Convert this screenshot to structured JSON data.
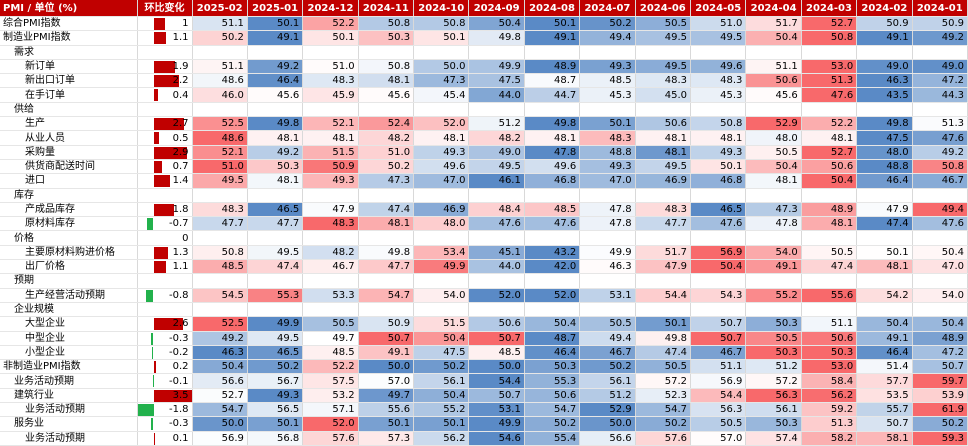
{
  "table": {
    "header": [
      "PMI / 单位 (%)",
      "环比变化",
      "2025-02",
      "2025-01",
      "2024-12",
      "2024-11",
      "2024-10",
      "2024-09",
      "2024-08",
      "2024-07",
      "2024-06",
      "2024-05",
      "2024-04",
      "2024-03",
      "2024-02",
      "2024-01"
    ],
    "rows": [
      {
        "label": "综合PMI指数",
        "change": 1,
        "values": [
          51.1,
          50.1,
          52.2,
          50.8,
          50.8,
          50.4,
          50.1,
          50.2,
          50.5,
          51.0,
          51.7,
          52.7,
          50.9,
          50.9
        ],
        "value_labels": [
          "51.1",
          "50.1",
          "52.2",
          "50.8",
          "50.8",
          "50.4",
          "50.1",
          "50.2",
          "50.5",
          "51.0",
          "51.7",
          "52.7",
          "50.9",
          "50.9"
        ]
      },
      {
        "label": "制造业PMI指数",
        "change": 1.1,
        "values": [
          50.2,
          49.1,
          50.1,
          50.3,
          50.1,
          49.8,
          49.1,
          49.4,
          49.5,
          49.5,
          50.4,
          50.8,
          49.1,
          49.2
        ],
        "value_labels": [
          "50.2",
          "49.1",
          "50.1",
          "50.3",
          "50.1",
          "49.8",
          "49.1",
          "49.4",
          "49.5",
          "49.5",
          "50.4",
          "50.8",
          "49.1",
          "49.2"
        ]
      },
      {
        "label": "需求"
      },
      {
        "label": "新订单",
        "change": 1.9,
        "values": [
          51.1,
          49.2,
          51.0,
          50.8,
          50.0,
          49.9,
          48.9,
          49.3,
          49.5,
          49.6,
          51.1,
          53.0,
          49.0,
          49.0
        ],
        "value_labels": [
          "51.1",
          "49.2",
          "51.0",
          "50.8",
          "50.0",
          "49.9",
          "48.9",
          "49.3",
          "49.5",
          "49.6",
          "51.1",
          "53.0",
          "49.0",
          "49.0"
        ]
      },
      {
        "label": "新出口订单",
        "change": 2.2,
        "values": [
          48.6,
          46.4,
          48.3,
          48.1,
          47.3,
          47.5,
          48.7,
          48.5,
          48.3,
          48.3,
          50.6,
          51.3,
          46.3,
          47.2
        ],
        "value_labels": [
          "48.6",
          "46.4",
          "48.3",
          "48.1",
          "47.3",
          "47.5",
          "48.7",
          "48.5",
          "48.3",
          "48.3",
          "50.6",
          "51.3",
          "46.3",
          "47.2"
        ]
      },
      {
        "label": "在手订单",
        "change": 0.4,
        "values": [
          46.0,
          45.6,
          45.9,
          45.6,
          45.4,
          44.0,
          44.7,
          45.3,
          45.0,
          45.3,
          45.6,
          47.6,
          43.5,
          44.3
        ],
        "value_labels": [
          "46.0",
          "45.6",
          "45.9",
          "45.6",
          "45.4",
          "44.0",
          "44.7",
          "45.3",
          "45.0",
          "45.3",
          "45.6",
          "47.6",
          "43.5",
          "44.3"
        ]
      },
      {
        "label": "供给"
      },
      {
        "label": "生产",
        "change": 2.7,
        "values": [
          52.5,
          49.8,
          52.1,
          52.4,
          52.0,
          51.2,
          49.8,
          50.1,
          50.6,
          50.8,
          52.9,
          52.2,
          49.8,
          51.3
        ],
        "value_labels": [
          "52.5",
          "49.8",
          "52.1",
          "52.4",
          "52.0",
          "51.2",
          "49.8",
          "50.1",
          "50.6",
          "50.8",
          "52.9",
          "52.2",
          "49.8",
          "51.3"
        ]
      },
      {
        "label": "从业人员",
        "change": 0.5,
        "values": [
          48.6,
          48.1,
          48.1,
          48.2,
          48.1,
          48.2,
          48.1,
          48.3,
          48.1,
          48.1,
          48.0,
          48.1,
          47.5,
          47.6
        ],
        "value_labels": [
          "48.6",
          "48.1",
          "48.1",
          "48.2",
          "48.1",
          "48.2",
          "48.1",
          "48.3",
          "48.1",
          "48.1",
          "48.0",
          "48.1",
          "47.5",
          "47.6"
        ]
      },
      {
        "label": "采购量",
        "change": 2.9,
        "values": [
          52.1,
          49.2,
          51.5,
          51.0,
          49.3,
          49.0,
          47.8,
          48.8,
          48.1,
          49.3,
          50.5,
          52.7,
          48.0,
          49.2
        ],
        "value_labels": [
          "52.1",
          "49.2",
          "51.5",
          "51.0",
          "49.3",
          "49.0",
          "47.8",
          "48.8",
          "48.1",
          "49.3",
          "50.5",
          "52.7",
          "48.0",
          "49.2"
        ]
      },
      {
        "label": "供货商配送时间",
        "change": 0.7,
        "values": [
          51.0,
          50.3,
          50.9,
          50.2,
          49.6,
          49.5,
          49.6,
          49.3,
          49.5,
          50.1,
          50.4,
          50.6,
          48.8,
          50.8
        ],
        "value_labels": [
          "51.0",
          "50.3",
          "50.9",
          "50.2",
          "49.6",
          "49.5",
          "49.6",
          "49.3",
          "49.5",
          "50.1",
          "50.4",
          "50.6",
          "48.8",
          "50.8"
        ]
      },
      {
        "label": "进口",
        "change": 1.4,
        "values": [
          49.5,
          48.1,
          49.3,
          47.3,
          47.0,
          46.1,
          46.8,
          47.0,
          46.9,
          46.8,
          48.1,
          50.4,
          46.4,
          46.7
        ],
        "value_labels": [
          "49.5",
          "48.1",
          "49.3",
          "47.3",
          "47.0",
          "46.1",
          "46.8",
          "47.0",
          "46.9",
          "46.8",
          "48.1",
          "50.4",
          "46.4",
          "46.7"
        ]
      },
      {
        "label": "库存"
      },
      {
        "label": "产成品库存",
        "change": 1.8,
        "values": [
          48.3,
          46.5,
          47.9,
          47.4,
          46.9,
          48.4,
          48.5,
          47.8,
          48.3,
          46.5,
          47.3,
          48.9,
          47.9,
          49.4
        ],
        "value_labels": [
          "48.3",
          "46.5",
          "47.9",
          "47.4",
          "46.9",
          "48.4",
          "48.5",
          "47.8",
          "48.3",
          "46.5",
          "47.3",
          "48.9",
          "47.9",
          "49.4"
        ]
      },
      {
        "label": "原材料库存",
        "change": -0.7,
        "values": [
          47.7,
          47.7,
          48.3,
          48.1,
          48.0,
          47.6,
          47.6,
          47.8,
          47.7,
          47.6,
          47.8,
          48.1,
          47.4,
          47.6
        ],
        "value_labels": [
          "47.7",
          "47.7",
          "48.3",
          "48.1",
          "48.0",
          "47.6",
          "47.6",
          "47.8",
          "47.7",
          "47.6",
          "47.8",
          "48.1",
          "47.4",
          "47.6"
        ]
      },
      {
        "label": "价格",
        "change": 0
      },
      {
        "label": "主要原材料购进价格",
        "change": 1.3,
        "values": [
          50.8,
          49.5,
          48.2,
          49.8,
          53.4,
          45.1,
          43.2,
          49.9,
          51.7,
          56.9,
          54.0,
          50.5,
          50.1,
          50.4
        ],
        "value_labels": [
          "50.8",
          "49.5",
          "48.2",
          "49.8",
          "53.4",
          "45.1",
          "43.2",
          "49.9",
          "51.7",
          "56.9",
          "54.0",
          "50.5",
          "50.1",
          "50.4"
        ]
      },
      {
        "label": "出厂价格",
        "change": 1.1,
        "values": [
          48.5,
          47.4,
          46.7,
          47.7,
          49.9,
          44.0,
          42.0,
          46.3,
          47.9,
          50.4,
          49.1,
          47.4,
          48.1,
          47.0
        ],
        "value_labels": [
          "48.5",
          "47.4",
          "46.7",
          "47.7",
          "49.9",
          "44.0",
          "42.0",
          "46.3",
          "47.9",
          "50.4",
          "49.1",
          "47.4",
          "48.1",
          "47.0"
        ]
      },
      {
        "label": "预期"
      },
      {
        "label": "生产经营活动预期",
        "change": -0.8,
        "values": [
          54.5,
          55.3,
          53.3,
          54.7,
          54.0,
          52.0,
          52.0,
          53.1,
          54.4,
          54.3,
          55.2,
          55.6,
          54.2,
          54.0
        ],
        "value_labels": [
          "54.5",
          "55.3",
          "53.3",
          "54.7",
          "54.0",
          "52.0",
          "52.0",
          "53.1",
          "54.4",
          "54.3",
          "55.2",
          "55.6",
          "54.2",
          "54.0"
        ]
      },
      {
        "label": "企业规模"
      },
      {
        "label": "大型企业",
        "change": 2.6,
        "values": [
          52.5,
          49.9,
          50.5,
          50.9,
          51.5,
          50.6,
          50.4,
          50.5,
          50.1,
          50.7,
          50.3,
          51.1,
          50.4,
          50.4
        ],
        "value_labels": [
          "52.5",
          "49.9",
          "50.5",
          "50.9",
          "51.5",
          "50.6",
          "50.4",
          "50.5",
          "50.1",
          "50.7",
          "50.3",
          "51.1",
          "50.4",
          "50.4"
        ]
      },
      {
        "label": "中型企业",
        "change": -0.3,
        "values": [
          49.2,
          49.5,
          49.7,
          50.7,
          50.4,
          50.7,
          48.7,
          49.4,
          49.8,
          50.7,
          50.5,
          50.6,
          49.1,
          48.9
        ],
        "value_labels": [
          "49.2",
          "49.5",
          "49.7",
          "50.7",
          "50.4",
          "50.7",
          "48.7",
          "49.4",
          "49.8",
          "50.7",
          "50.5",
          "50.6",
          "49.1",
          "48.9"
        ]
      },
      {
        "label": "小型企业",
        "change": -0.2,
        "values": [
          46.3,
          46.5,
          48.5,
          49.1,
          47.5,
          48.5,
          46.4,
          46.7,
          47.4,
          46.7,
          50.3,
          50.3,
          46.4,
          47.2
        ],
        "value_labels": [
          "46.3",
          "46.5",
          "48.5",
          "49.1",
          "47.5",
          "48.5",
          "46.4",
          "46.7",
          "47.4",
          "46.7",
          "50.3",
          "50.3",
          "46.4",
          "47.2"
        ]
      },
      {
        "label": "非制造业PMI指数",
        "change": 0.2,
        "values": [
          50.4,
          50.2,
          52.2,
          50.0,
          50.2,
          50.0,
          50.3,
          50.2,
          50.5,
          51.1,
          51.2,
          53.0,
          51.4,
          50.7
        ],
        "value_labels": [
          "50.4",
          "50.2",
          "52.2",
          "50.0",
          "50.2",
          "50.0",
          "50.3",
          "50.2",
          "50.5",
          "51.1",
          "51.2",
          "53.0",
          "51.4",
          "50.7"
        ]
      },
      {
        "label": "业务活动预期",
        "change": -0.1,
        "values": [
          56.6,
          56.7,
          57.5,
          57.0,
          56.1,
          54.4,
          55.3,
          56.1,
          57.2,
          56.9,
          57.2,
          58.4,
          57.7,
          59.7
        ],
        "value_labels": [
          "56.6",
          "56.7",
          "57.5",
          "57.0",
          "56.1",
          "54.4",
          "55.3",
          "56.1",
          "57.2",
          "56.9",
          "57.2",
          "58.4",
          "57.7",
          "59.7"
        ]
      },
      {
        "label": "建筑行业",
        "change": 3.5,
        "values": [
          52.7,
          49.3,
          53.2,
          49.7,
          50.4,
          50.7,
          50.6,
          51.2,
          52.3,
          54.4,
          56.3,
          56.2,
          53.5,
          53.9
        ],
        "value_labels": [
          "52.7",
          "49.3",
          "53.2",
          "49.7",
          "50.4",
          "50.7",
          "50.6",
          "51.2",
          "52.3",
          "54.4",
          "56.3",
          "56.2",
          "53.5",
          "53.9"
        ]
      },
      {
        "label": "业务活动预期",
        "change": -1.8,
        "values": [
          54.7,
          56.5,
          57.1,
          55.6,
          55.2,
          53.1,
          54.7,
          52.9,
          54.7,
          56.3,
          56.1,
          59.2,
          55.7,
          61.9
        ],
        "value_labels": [
          "54.7",
          "56.5",
          "57.1",
          "55.6",
          "55.2",
          "53.1",
          "54.7",
          "52.9",
          "54.7",
          "56.3",
          "56.1",
          "59.2",
          "55.7",
          "61.9"
        ]
      },
      {
        "label": "服务业",
        "change": -0.3,
        "values": [
          50.0,
          50.1,
          52.0,
          50.1,
          50.1,
          49.9,
          50.2,
          50.0,
          50.2,
          50.5,
          50.3,
          51.3,
          50.7,
          50.2
        ],
        "value_labels": [
          "50.0",
          "50.1",
          "52.0",
          "50.1",
          "50.1",
          "49.9",
          "50.2",
          "50.0",
          "50.2",
          "50.5",
          "50.3",
          "51.3",
          "50.7",
          "50.2"
        ]
      },
      {
        "label": "业务活动预期",
        "change": 0.1,
        "values": [
          56.9,
          56.8,
          57.6,
          57.3,
          56.2,
          54.6,
          55.4,
          56.6,
          57.6,
          57.0,
          57.4,
          58.2,
          58.1,
          59.3
        ],
        "value_labels": [
          "56.9",
          "56.8",
          "57.6",
          "57.3",
          "56.2",
          "54.6",
          "55.4",
          "56.6",
          "57.6",
          "57.0",
          "57.4",
          "58.2",
          "58.1",
          "59.3"
        ]
      }
    ]
  }
}
